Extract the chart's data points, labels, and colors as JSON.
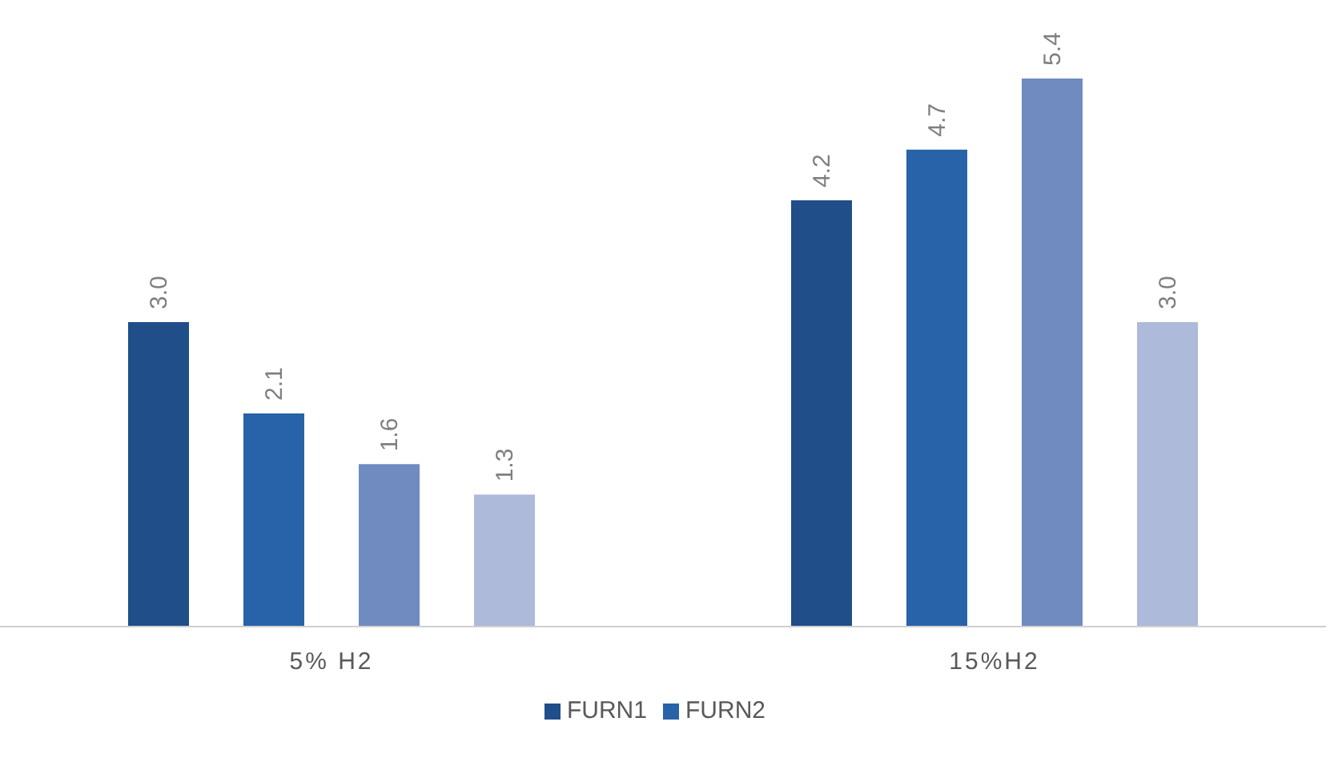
{
  "chart_data": {
    "type": "bar",
    "categories": [
      "5%  H2",
      "15%H2"
    ],
    "series": [
      {
        "name": "FURN1",
        "color": "#1f4e89",
        "values": [
          3.0,
          4.2
        ],
        "value_labels": [
          "3.0",
          "4.2"
        ]
      },
      {
        "name": "FURN2",
        "color": "#2862a8",
        "values": [
          2.1,
          4.7
        ],
        "value_labels": [
          "2.1",
          "4.7"
        ]
      },
      {
        "color": "#6f8bc0",
        "values": [
          1.6,
          5.4
        ],
        "value_labels": [
          "1.6",
          "5.4"
        ]
      },
      {
        "color": "#adbad9",
        "values": [
          1.3,
          3.0
        ],
        "value_labels": [
          "1.3",
          "3.0"
        ]
      }
    ],
    "legend": "bottom",
    "grid": false
  }
}
